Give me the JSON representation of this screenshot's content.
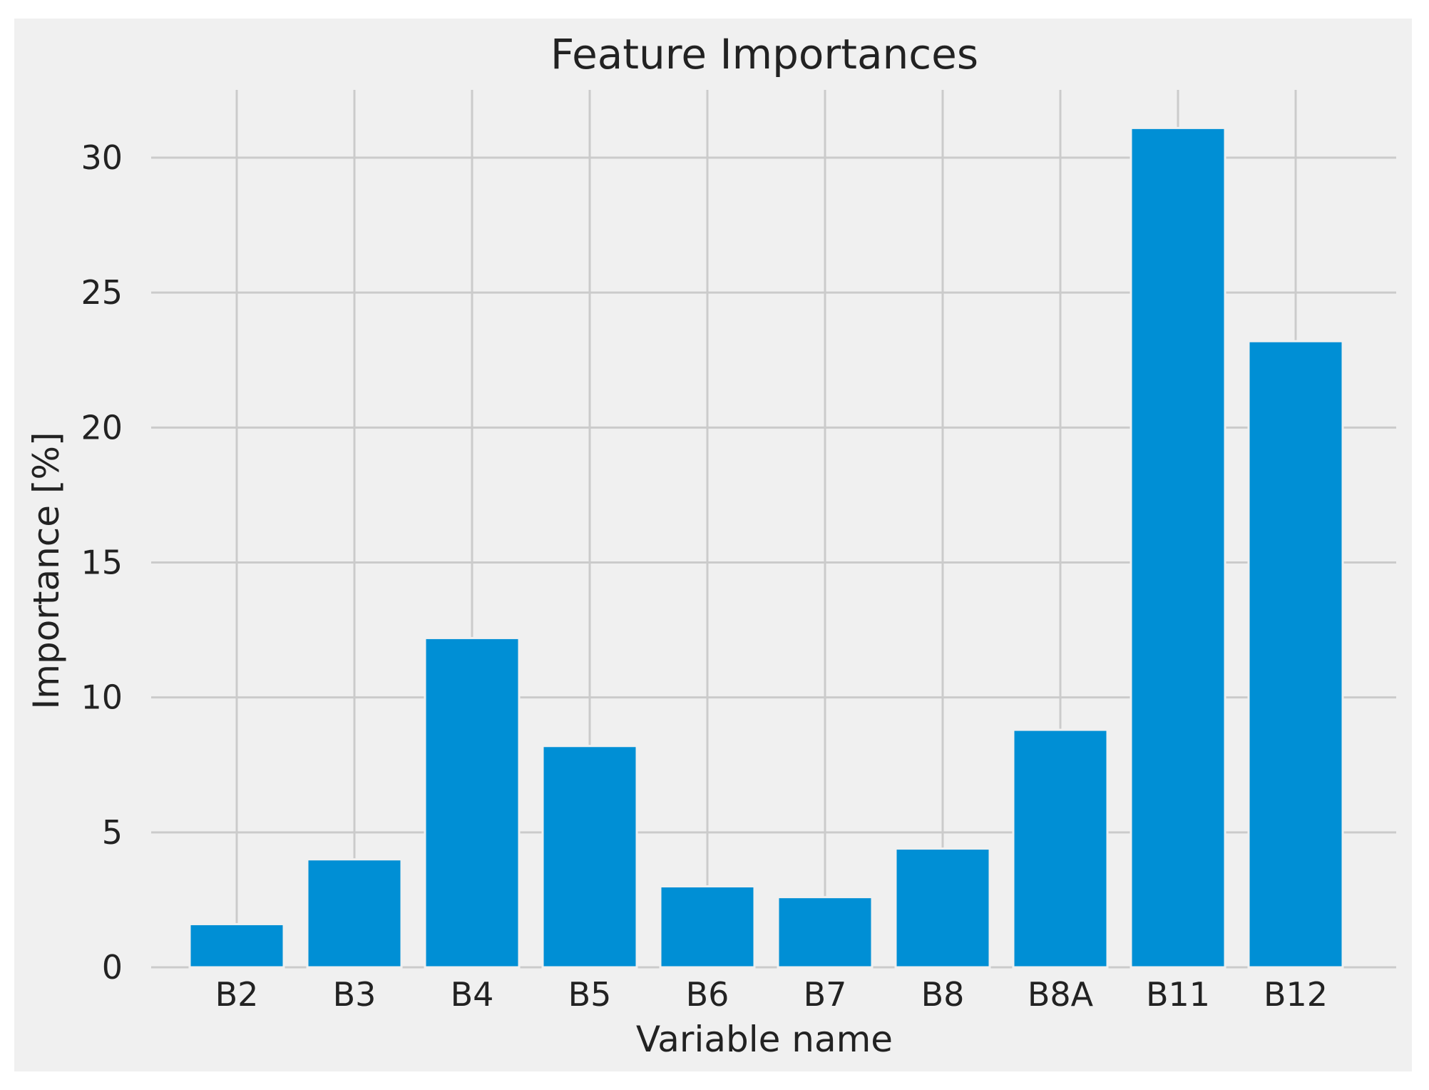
{
  "chart_data": {
    "type": "bar",
    "title": "Feature Importances",
    "xlabel": "Variable name",
    "ylabel": "Importance [%]",
    "categories": [
      "B2",
      "B3",
      "B4",
      "B5",
      "B6",
      "B7",
      "B8",
      "B8A",
      "B11",
      "B12"
    ],
    "values": [
      1.6,
      4.0,
      12.2,
      8.2,
      3.0,
      2.6,
      4.4,
      8.8,
      31.1,
      23.2
    ],
    "ylim": [
      0,
      32.5
    ],
    "yticks": [
      0,
      5,
      10,
      15,
      20,
      25,
      30
    ],
    "grid": true,
    "colors": {
      "bar": "#008fd5",
      "background": "#f0f0f0",
      "grid": "#cbcbcb",
      "text": "#222222"
    }
  }
}
